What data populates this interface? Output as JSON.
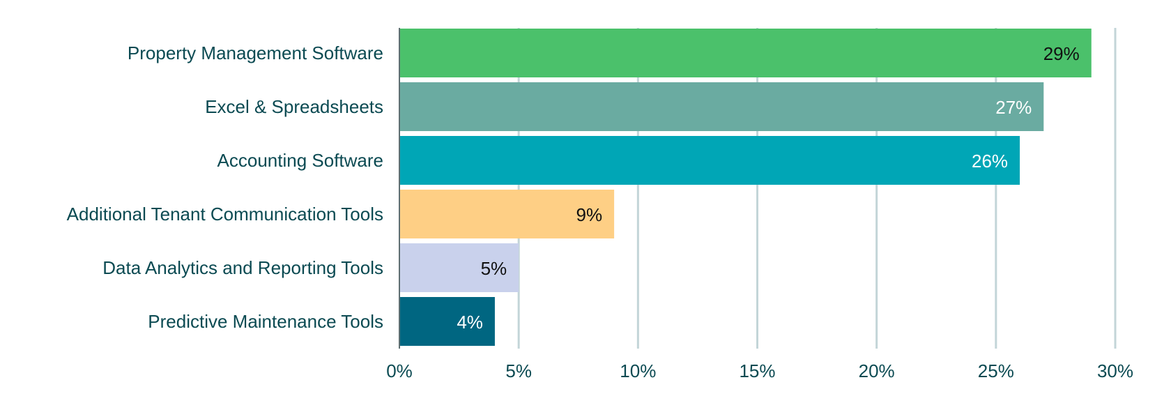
{
  "chart_data": {
    "type": "bar",
    "orientation": "horizontal",
    "title": "",
    "xlabel": "",
    "ylabel": "",
    "xlim": [
      0,
      30
    ],
    "x_ticks": [
      0,
      5,
      10,
      15,
      20,
      25,
      30
    ],
    "x_tick_labels": [
      "0%",
      "5%",
      "10%",
      "15%",
      "20%",
      "25%",
      "30%"
    ],
    "grid": "vertical",
    "legend": "none",
    "categories": [
      "Property Management Software",
      "Excel & Spreadsheets",
      "Accounting Software",
      "Additional Tenant Communication Tools",
      "Data Analytics and Reporting Tools",
      "Predictive Maintenance Tools"
    ],
    "values": [
      29,
      27,
      26,
      9,
      5,
      4
    ],
    "value_labels": [
      "29%",
      "27%",
      "26%",
      "9%",
      "5%",
      "4%"
    ],
    "bar_colors": [
      "#4bc16b",
      "#6aaba1",
      "#00a6b6",
      "#fecf85",
      "#c9d1ec",
      "#006681"
    ],
    "label_colors": [
      "#111111",
      "#ffffff",
      "#ffffff",
      "#111111",
      "#111111",
      "#ffffff"
    ],
    "text_color": "#0b4a52",
    "grid_color": "#c3d5d8"
  }
}
